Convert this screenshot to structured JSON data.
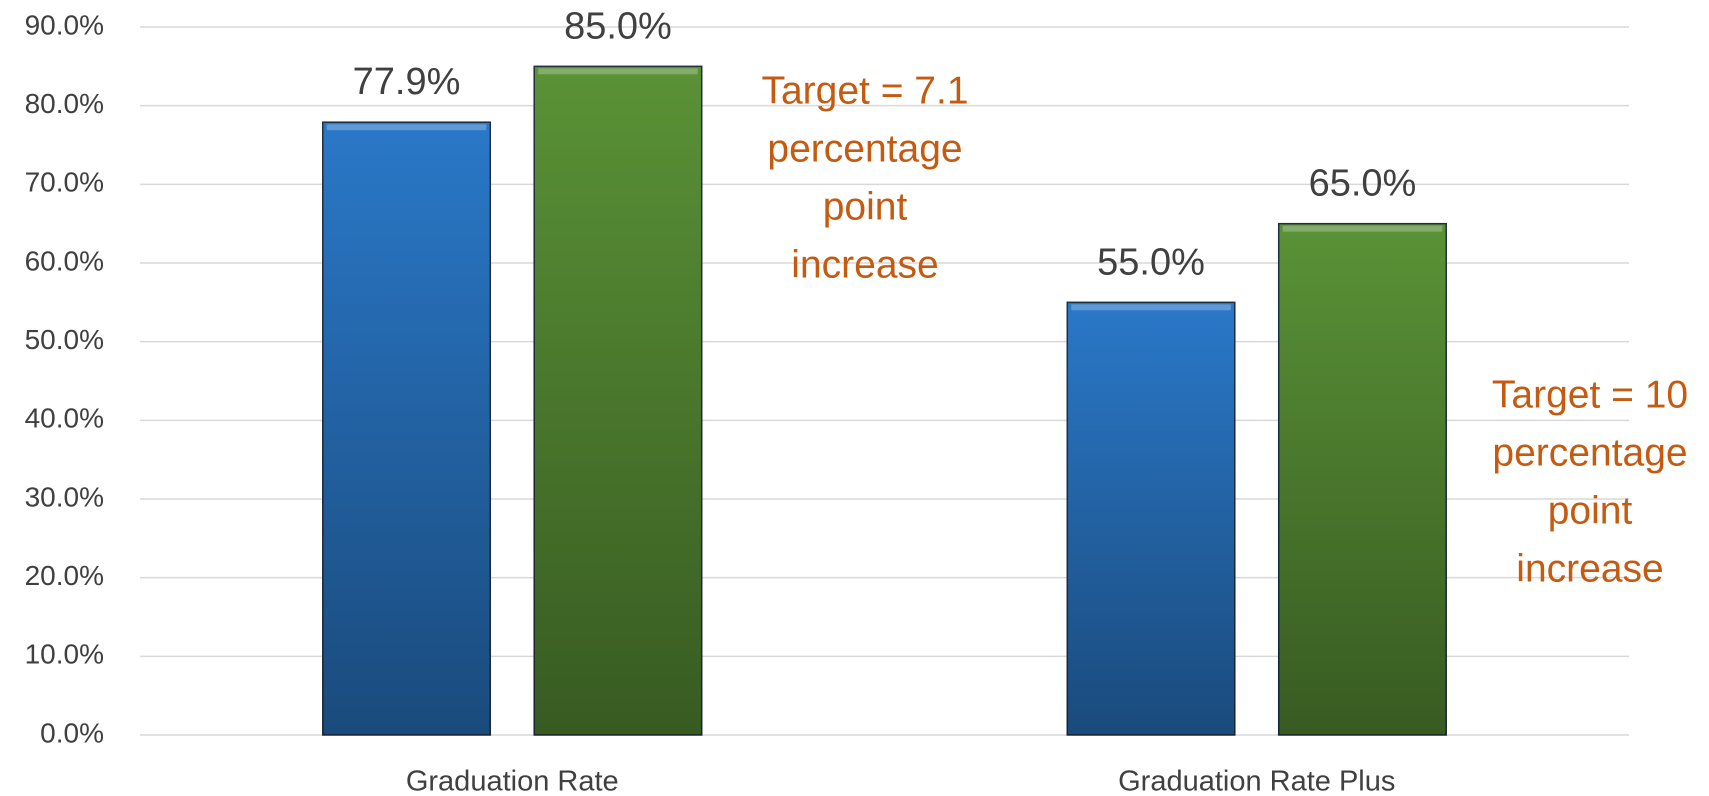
{
  "chart_data": {
    "type": "bar",
    "categories": [
      "Graduation Rate",
      "Graduation Rate Plus"
    ],
    "series": [
      {
        "color": "#2a78c8",
        "values": [
          77.9,
          55.0
        ],
        "value_labels": [
          "77.9%",
          "55.0%"
        ]
      },
      {
        "color": "#5a9236",
        "values": [
          85.0,
          65.0
        ],
        "value_labels": [
          "85.0%",
          "65.0%"
        ]
      }
    ],
    "ylim": [
      0,
      90
    ],
    "yticks": [
      {
        "value": 0,
        "label": "0.0%"
      },
      {
        "value": 10,
        "label": "10.0%"
      },
      {
        "value": 20,
        "label": "20.0%"
      },
      {
        "value": 30,
        "label": "30.0%"
      },
      {
        "value": 40,
        "label": "40.0%"
      },
      {
        "value": 50,
        "label": "50.0%"
      },
      {
        "value": 60,
        "label": "60.0%"
      },
      {
        "value": 70,
        "label": "70.0%"
      },
      {
        "value": 80,
        "label": "80.0%"
      },
      {
        "value": 90,
        "label": "90.0%"
      }
    ],
    "grid": true,
    "annotations": [
      [
        "Target = 7.1",
        "percentage",
        "point",
        "increase"
      ],
      [
        "Target = 10",
        "percentage",
        "point",
        "increase"
      ]
    ]
  }
}
